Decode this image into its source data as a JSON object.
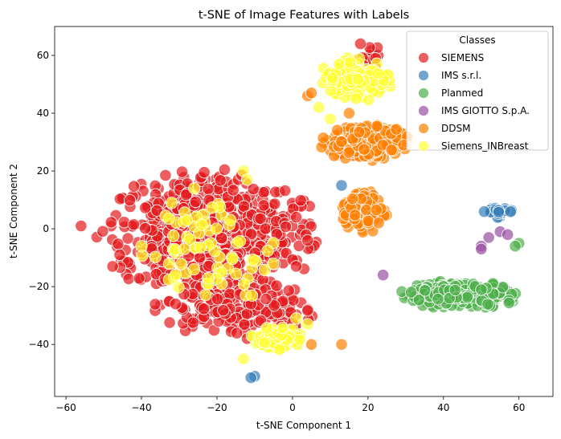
{
  "chart_data": {
    "type": "scatter",
    "title": "t-SNE of Image Features with Labels",
    "xlabel": "t-SNE Component 1",
    "ylabel": "t-SNE Component 2",
    "xlim": [
      -63,
      69
    ],
    "ylim": [
      -58,
      70
    ],
    "xticks": [
      -60,
      -40,
      -20,
      0,
      20,
      40,
      60
    ],
    "yticks": [
      -40,
      -20,
      0,
      20,
      40,
      60
    ],
    "xtick_labels": [
      "−60",
      "−40",
      "−20",
      "0",
      "20",
      "40",
      "60"
    ],
    "ytick_labels": [
      "−40",
      "−20",
      "0",
      "20",
      "40",
      "60"
    ],
    "grid": false,
    "legend": {
      "title": "Classes",
      "position": "top-right"
    },
    "series": [
      {
        "name": "SIEMENS",
        "color": "#e41a1c",
        "clusters": [
          {
            "cx": -22,
            "cy": -2,
            "rx": 30,
            "ry": 23,
            "n": 620
          },
          {
            "cx": -15,
            "cy": -28,
            "rx": 22,
            "ry": 10,
            "n": 180
          },
          {
            "cx": 20,
            "cy": 56,
            "rx": 5,
            "ry": 8,
            "n": 25
          }
        ],
        "points": [
          [
            -56,
            1
          ],
          [
            -12,
            -38
          ],
          [
            4,
            -4
          ],
          [
            1,
            4
          ],
          [
            18,
            64
          ],
          [
            22,
            59
          ]
        ]
      },
      {
        "name": "IMS s.r.l.",
        "color": "#377eb8",
        "clusters": [
          {
            "cx": 54,
            "cy": 6,
            "rx": 5,
            "ry": 2.2,
            "n": 22
          }
        ],
        "points": [
          [
            -10,
            -51
          ],
          [
            -11,
            -51.5
          ],
          [
            13,
            15
          ]
        ]
      },
      {
        "name": "Planmed",
        "color": "#4daf4a",
        "clusters": [
          {
            "cx": 44,
            "cy": -23,
            "rx": 16,
            "ry": 5,
            "n": 260
          }
        ],
        "points": [
          [
            60,
            -5
          ],
          [
            59,
            -6
          ]
        ]
      },
      {
        "name": "IMS GIOTTO S.p.A.",
        "color": "#984ea3",
        "points": [
          [
            24,
            -16
          ],
          [
            50,
            -6
          ],
          [
            50,
            -7
          ],
          [
            55,
            -1
          ],
          [
            57,
            -2
          ],
          [
            52,
            -3
          ]
        ]
      },
      {
        "name": "DDSM",
        "color": "#ff7f00",
        "clusters": [
          {
            "cx": 19,
            "cy": 30,
            "rx": 12,
            "ry": 6.5,
            "n": 240
          },
          {
            "cx": 19,
            "cy": 6,
            "rx": 6,
            "ry": 8,
            "n": 110
          }
        ],
        "points": [
          [
            4,
            46
          ],
          [
            5,
            47
          ],
          [
            15,
            40
          ],
          [
            13,
            -40
          ],
          [
            5,
            -40
          ]
        ]
      },
      {
        "name": "Siemens_INBreast",
        "color": "#ffff33",
        "clusters": [
          {
            "cx": 17,
            "cy": 52,
            "rx": 10,
            "ry": 8,
            "n": 160
          },
          {
            "cx": -5,
            "cy": -38,
            "rx": 8,
            "ry": 4,
            "n": 90
          },
          {
            "cx": -22,
            "cy": -8,
            "rx": 18,
            "ry": 20,
            "n": 70
          }
        ],
        "points": [
          [
            -13,
            20
          ],
          [
            -12,
            17
          ],
          [
            -26,
            14
          ],
          [
            -32,
            9
          ],
          [
            -28,
            3
          ],
          [
            -40,
            -6
          ],
          [
            7,
            42
          ],
          [
            10,
            38
          ],
          [
            -13,
            -45
          ],
          [
            1,
            -31
          ],
          [
            4,
            -33
          ]
        ]
      }
    ]
  }
}
